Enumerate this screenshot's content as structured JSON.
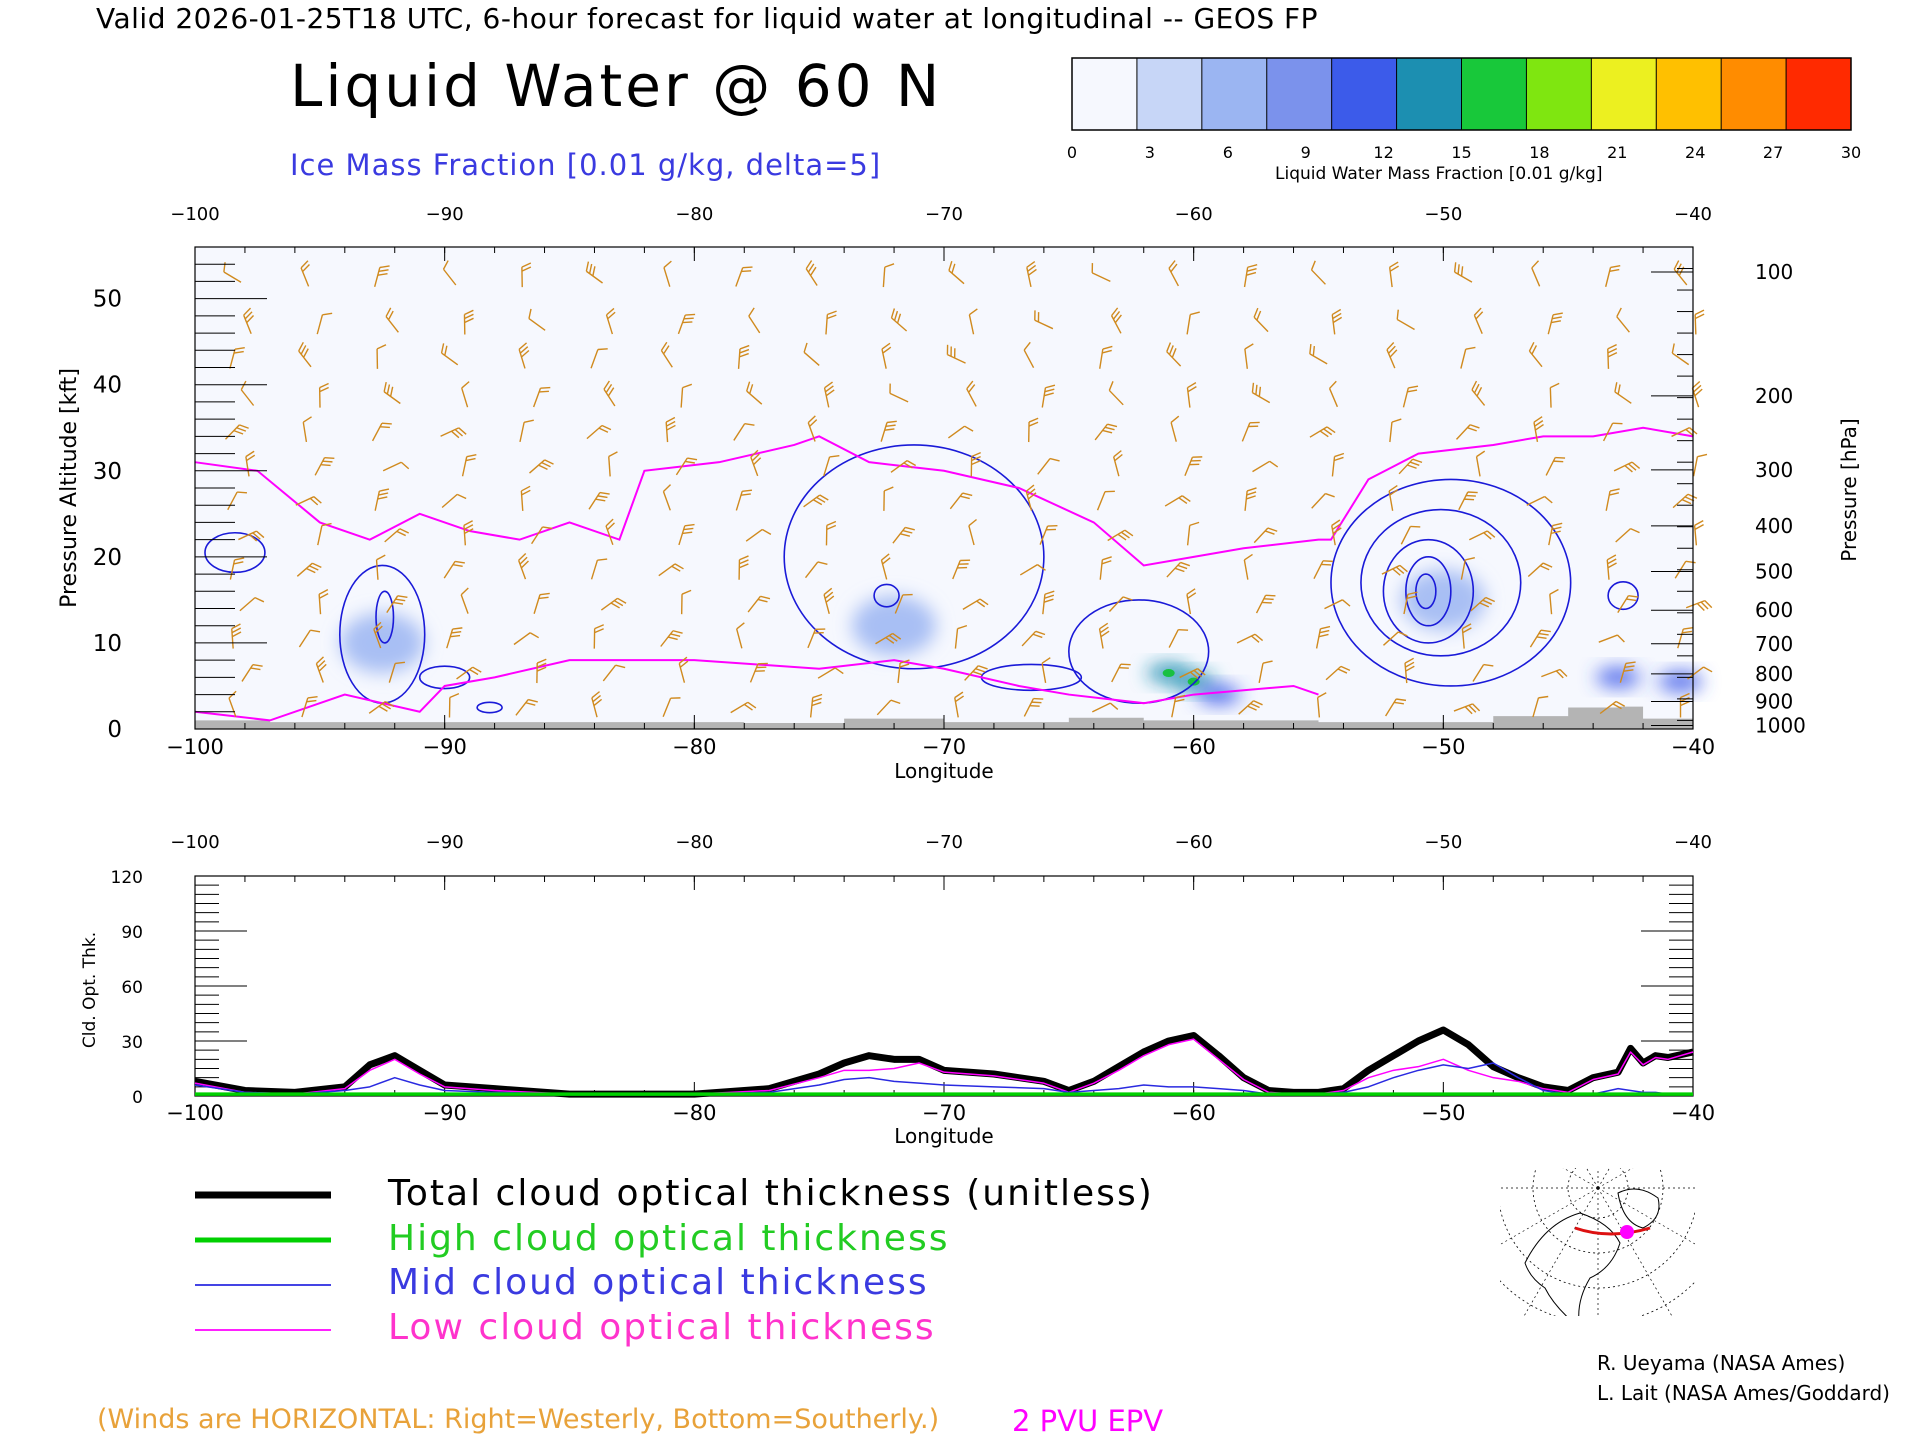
{
  "header": {
    "valid_line": "Valid 2026-01-25T18 UTC, 6-hour forecast for liquid water at longitudinal -- GEOS FP",
    "title": "Liquid Water @ 60 N",
    "subtitle": "Ice Mass Fraction [0.01 g/kg, delta=5]"
  },
  "colorbar": {
    "label": "Liquid Water Mass Fraction [0.01 g/kg]",
    "ticks": [
      "0",
      "3",
      "6",
      "9",
      "12",
      "15",
      "18",
      "21",
      "24",
      "27",
      "30"
    ],
    "colors": [
      "#f6f8fe",
      "#c7d6f7",
      "#9bb5f2",
      "#7b92ec",
      "#3c5bea",
      "#1c8fb1",
      "#18c83a",
      "#7fe610",
      "#ecf020",
      "#ffc000",
      "#ff8c00",
      "#ff2a00"
    ]
  },
  "colors": {
    "ice_contour": "#1a1ad8",
    "epv_line": "#ff00ff",
    "wind_barb": "#d08a1e",
    "terrain": "#b4b4b4",
    "high_cloud": "#00d000",
    "mid_cloud": "#2a2ae0",
    "low_cloud": "#ff00ff",
    "total_cloud": "#000000"
  },
  "chart_data": [
    {
      "type": "heatmap",
      "title": "Liquid Water @ 60 N",
      "xlabel": "Longitude",
      "ylabel_left": "Pressure Altitude [kft]",
      "ylabel_right": "Pressure [hPa]",
      "xlim": [
        -100,
        -40
      ],
      "ylim": [
        0,
        56
      ],
      "x_ticks": [
        "-100",
        "-90",
        "-80",
        "-70",
        "-60",
        "-50",
        "-40"
      ],
      "x_ticks_top": [
        "-100",
        "-90",
        "-80",
        "-70",
        "-60",
        "-50",
        "-40"
      ],
      "y_ticks_left": [
        "0",
        "10",
        "20",
        "30",
        "40",
        "50"
      ],
      "y_ticks_right": [
        "100",
        "200",
        "300",
        "400",
        "500",
        "600",
        "700",
        "800",
        "900",
        "1000"
      ],
      "y_ticks_right_kft": [
        53.1,
        38.7,
        30.1,
        23.6,
        18.3,
        13.8,
        9.9,
        6.4,
        3.2,
        0.4
      ],
      "liquid_water_patches": [
        {
          "lon": -61,
          "kft": 6.5,
          "value": 13
        },
        {
          "lon": -60,
          "kft": 5.5,
          "value": 14
        },
        {
          "lon": -59,
          "kft": 4.0,
          "value": 10
        },
        {
          "lon": -43,
          "kft": 6.0,
          "value": 11
        },
        {
          "lon": -40.5,
          "kft": 5.5,
          "value": 10
        },
        {
          "lon": -50,
          "kft": 15.0,
          "value": 5
        },
        {
          "lon": -72,
          "kft": 12.0,
          "value": 3
        },
        {
          "lon": -92.5,
          "kft": 10.0,
          "value": 3
        }
      ],
      "epv_2pvu_upper_kft": [
        [
          -100,
          31
        ],
        [
          -97.5,
          30
        ],
        [
          -95,
          24
        ],
        [
          -93,
          22
        ],
        [
          -91,
          25
        ],
        [
          -89,
          23
        ],
        [
          -87,
          22
        ],
        [
          -85,
          24
        ],
        [
          -83,
          22
        ],
        [
          -82,
          30
        ],
        [
          -79,
          31
        ],
        [
          -76,
          33
        ],
        [
          -75,
          34
        ],
        [
          -73,
          31
        ],
        [
          -70,
          30
        ],
        [
          -67,
          28
        ],
        [
          -64,
          24
        ],
        [
          -62,
          19
        ],
        [
          -60,
          20
        ],
        [
          -58,
          21
        ],
        [
          -55,
          22
        ],
        [
          -54.5,
          22
        ],
        [
          -53,
          29
        ],
        [
          -51,
          32
        ],
        [
          -48,
          33
        ],
        [
          -46,
          34
        ],
        [
          -44,
          34
        ],
        [
          -42,
          35
        ],
        [
          -40,
          34
        ]
      ],
      "epv_2pvu_lower_kft": [
        [
          -100,
          2
        ],
        [
          -97,
          1
        ],
        [
          -94,
          4
        ],
        [
          -91,
          2
        ],
        [
          -90,
          5
        ],
        [
          -88,
          6
        ],
        [
          -85,
          8
        ],
        [
          -80,
          8
        ],
        [
          -75,
          7
        ],
        [
          -72,
          8
        ],
        [
          -70,
          7
        ],
        [
          -67,
          5
        ],
        [
          -65,
          4
        ],
        [
          -62,
          3
        ],
        [
          -60,
          4
        ],
        [
          -56,
          5
        ],
        [
          -55,
          4
        ]
      ],
      "terrain_kft": [
        [
          -100,
          1
        ],
        [
          -97,
          0.8
        ],
        [
          -78,
          0.7
        ],
        [
          -74,
          1.2
        ],
        [
          -70,
          0.8
        ],
        [
          -65,
          1.3
        ],
        [
          -62,
          1.0
        ],
        [
          -55,
          0.8
        ],
        [
          -48,
          1.5
        ],
        [
          -45,
          2.5
        ],
        [
          -43,
          2.6
        ],
        [
          -42,
          1.2
        ],
        [
          -40,
          1.5
        ]
      ]
    },
    {
      "type": "line",
      "xlabel": "Longitude",
      "ylabel": "Cld. Opt. Thk.",
      "xlim": [
        -100,
        -40
      ],
      "ylim": [
        0,
        120
      ],
      "x_ticks": [
        "-100",
        "-90",
        "-80",
        "-70",
        "-60",
        "-50",
        "-40"
      ],
      "x_ticks_top": [
        "-100",
        "-90",
        "-80",
        "-70",
        "-60",
        "-50",
        "-40"
      ],
      "y_ticks": [
        "0",
        "30",
        "60",
        "90",
        "120"
      ],
      "x": [
        -100,
        -98,
        -96,
        -94,
        -93,
        -92,
        -91,
        -90,
        -88,
        -85,
        -80,
        -77,
        -75,
        -74,
        -73,
        -72,
        -71,
        -70,
        -68,
        -66,
        -65,
        -64,
        -63,
        -62,
        -61,
        -60,
        -59,
        -58,
        -57,
        -56,
        -55,
        -54,
        -53,
        -52,
        -51,
        -50,
        -49,
        -48,
        -47,
        -46,
        -45,
        -44,
        -43,
        -42.5,
        -42,
        -41.5,
        -41,
        -40
      ],
      "series": [
        {
          "name": "Total cloud optical thickness (unitless)",
          "color": "#000000",
          "values": [
            8,
            3,
            2,
            5,
            17,
            22,
            14,
            6,
            4,
            1,
            1,
            4,
            12,
            18,
            22,
            20,
            20,
            14,
            12,
            8,
            3,
            8,
            16,
            24,
            30,
            33,
            22,
            10,
            3,
            2,
            2,
            4,
            14,
            22,
            30,
            36,
            28,
            16,
            10,
            5,
            3,
            10,
            13,
            26,
            18,
            22,
            21,
            24
          ]
        },
        {
          "name": "High cloud optical thickness",
          "color": "#00d000",
          "values": [
            1,
            1,
            1,
            1,
            1,
            1,
            1,
            1,
            1,
            1,
            1,
            1,
            1,
            1,
            1,
            1,
            1,
            1,
            1,
            1,
            1,
            1,
            1,
            1,
            1,
            1,
            1,
            1,
            1,
            1,
            1,
            1,
            1,
            1,
            1,
            1,
            1,
            1,
            1,
            1,
            1,
            1,
            1,
            1,
            1,
            1,
            1,
            1
          ]
        },
        {
          "name": "Mid cloud optical thickness",
          "color": "#2a2ae0",
          "values": [
            6,
            2,
            1,
            3,
            5,
            10,
            6,
            3,
            2,
            1,
            1,
            2,
            6,
            9,
            10,
            8,
            7,
            6,
            5,
            4,
            2,
            3,
            4,
            6,
            5,
            5,
            4,
            3,
            1,
            1,
            1,
            2,
            5,
            10,
            14,
            17,
            15,
            18,
            10,
            3,
            1,
            1,
            4,
            3,
            2,
            2,
            1,
            1
          ]
        },
        {
          "name": "Low cloud optical thickness",
          "color": "#ff00ff",
          "values": [
            7,
            2,
            1,
            4,
            14,
            20,
            12,
            5,
            3,
            1,
            1,
            3,
            10,
            14,
            14,
            15,
            18,
            13,
            11,
            7,
            2,
            7,
            14,
            22,
            28,
            31,
            20,
            9,
            2,
            1,
            1,
            3,
            10,
            14,
            16,
            20,
            14,
            10,
            8,
            4,
            2,
            9,
            12,
            24,
            17,
            21,
            20,
            24
          ]
        }
      ],
      "legend": [
        "Total cloud optical thickness (unitless)",
        "High cloud optical thickness",
        "Mid cloud optical thickness",
        "Low cloud optical thickness"
      ]
    }
  ],
  "notes": {
    "winds": "(Winds are HORIZONTAL: Right=Westerly, Bottom=Southerly.)",
    "epv": "2 PVU EPV"
  },
  "credits": [
    "R. Ueyama (NASA Ames)",
    "L. Lait (NASA Ames/Goddard)"
  ]
}
